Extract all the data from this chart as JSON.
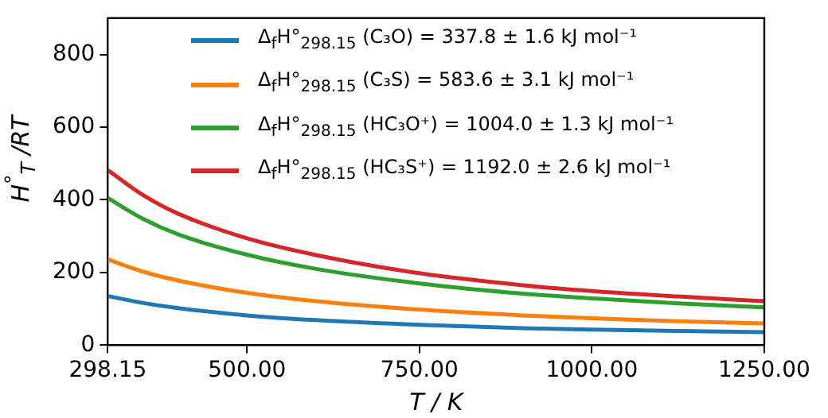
{
  "chart_data": {
    "type": "line",
    "xlabel": "T / K",
    "ylabel": "H$^{°}$$_{T}$ /RT",
    "x": [
      298.15,
      350,
      400,
      500,
      600,
      750,
      900,
      1000,
      1125,
      1250
    ],
    "series": [
      {
        "name": "Δ$_{f}$H°$_{298.15}$ (C₃O) = 337.8 ± 1.6 kJ mol⁻¹",
        "color": "#1f77b4",
        "values": [
          135,
          116,
          102,
          82,
          69,
          56,
          47,
          43,
          39,
          36
        ]
      },
      {
        "name": "Δ$_{f}$H°$_{298.15}$ (C₃S) = 583.6 ± 3.1 kJ mol⁻¹",
        "color": "#ff7f0e",
        "values": [
          236,
          202,
          178,
          144,
          121,
          98,
          82,
          74,
          66,
          60
        ]
      },
      {
        "name": "Δ$_{f}$H°$_{298.15}$ (HC₃O⁺) = 1004.0 ± 1.3 kJ mol⁻¹",
        "color": "#2ca02c",
        "values": [
          405,
          347,
          305,
          249,
          210,
          170,
          142,
          129,
          115,
          104
        ]
      },
      {
        "name": "Δ$_{f}$H°$_{298.15}$ (HC₃S⁺) = 1192.0 ± 2.6 kJ mol⁻¹",
        "color": "#d62728",
        "values": [
          482,
          412,
          362,
          294,
          248,
          198,
          165,
          149,
          134,
          121
        ]
      }
    ],
    "xlim": [
      298.15,
      1250
    ],
    "xticks": [
      {
        "value": 298.15,
        "label": "298.15"
      },
      {
        "value": 500,
        "label": "500.00"
      },
      {
        "value": 750,
        "label": "750.00"
      },
      {
        "value": 1000,
        "label": "1000.00"
      },
      {
        "value": 1250,
        "label": "1250.00"
      }
    ],
    "ylim": [
      0,
      900
    ],
    "yticks": [
      0,
      200,
      400,
      600,
      800
    ],
    "grid": false,
    "legend": "top",
    "marker": "none",
    "line_style": "solid"
  }
}
